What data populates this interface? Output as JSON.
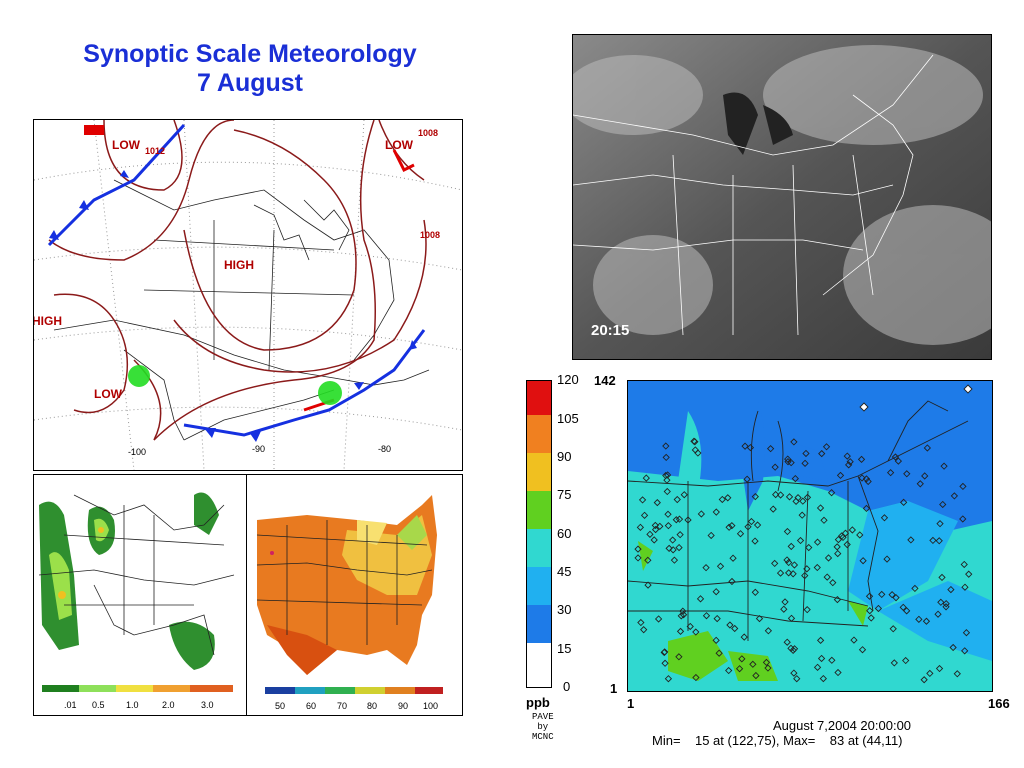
{
  "title": {
    "line1": "Synoptic Scale Meteorology",
    "line2": "7 August"
  },
  "synoptic": {
    "low_labels": [
      "LOW",
      "LOW",
      "LOW"
    ],
    "low_sub": "1012",
    "high_labels": [
      "HIGH",
      "HIGH"
    ],
    "isobar_labels": [
      "1008",
      "1008"
    ],
    "lon_labels": [
      "-100",
      "-90",
      "-80"
    ]
  },
  "precip_legend": [
    ".01",
    "0.5",
    "1.0",
    "2.0",
    "3.0"
  ],
  "temp_legend": [
    "50",
    "60",
    "70",
    "80",
    "90",
    "100"
  ],
  "satellite": {
    "time": "20:15"
  },
  "ozone": {
    "colorbar_ticks": [
      "120",
      "105",
      "90",
      "75",
      "60",
      "45",
      "30",
      "15",
      "0"
    ],
    "colorbar_colors": [
      "#e01010",
      "#f08020",
      "#f0c020",
      "#60d020",
      "#30d8d0",
      "#20b0f0",
      "#1e7be8",
      "#1040e0",
      "#ffffff"
    ],
    "unit": "ppb",
    "y_top": "142",
    "y_bottom": "1",
    "x_left": "1",
    "x_right": "166",
    "credit": [
      "PAVE",
      "by",
      "MCNC"
    ],
    "date_line": "August 7,2004 20:00:00",
    "minmax_line": "Min=    15 at (122,75), Max=    83 at (44,11)"
  }
}
